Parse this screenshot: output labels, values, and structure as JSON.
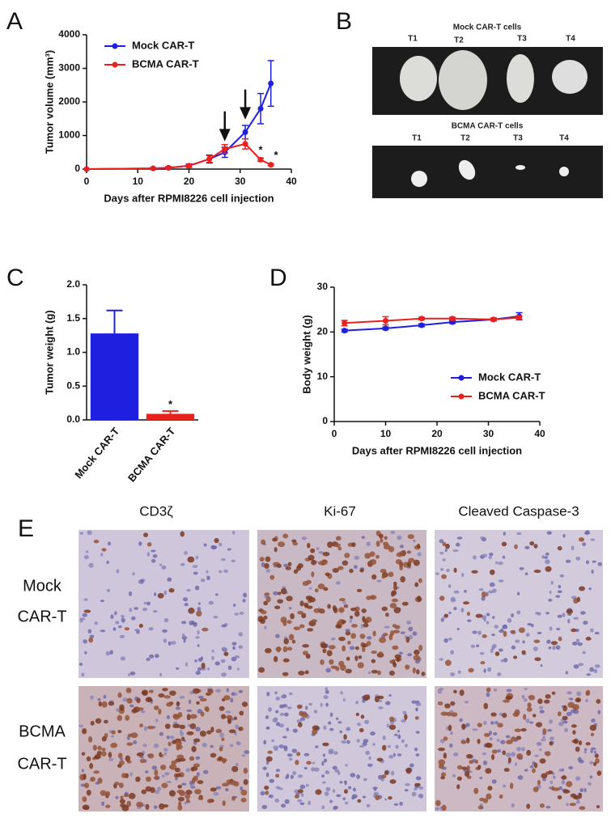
{
  "panel_labels": [
    "A",
    "B",
    "C",
    "D",
    "E"
  ],
  "chart_data": [
    {
      "type": "line",
      "x_label": "Days after RPMI8226 cell injection",
      "y_label": "Tumor volume (mm³)",
      "x": [
        0,
        13,
        16,
        20,
        24,
        27,
        31,
        34,
        36
      ],
      "series": [
        {
          "name": "Mock CAR-T",
          "color": "#1f1fe0",
          "values": [
            0,
            20,
            40,
            100,
            300,
            500,
            1100,
            1800,
            2550
          ],
          "errors": [
            0,
            20,
            30,
            50,
            120,
            150,
            200,
            450,
            680
          ]
        },
        {
          "name": "BCMA CAR-T",
          "color": "#e8211e",
          "values": [
            0,
            20,
            40,
            100,
            300,
            600,
            750,
            280,
            130
          ],
          "errors": [
            0,
            15,
            20,
            40,
            100,
            130,
            150,
            50,
            30
          ]
        }
      ],
      "xlim": [
        0,
        40
      ],
      "xticks": [
        0,
        10,
        20,
        30,
        40
      ],
      "ylim": [
        0,
        4000
      ],
      "yticks": [
        0,
        1000,
        2000,
        3000,
        4000
      ],
      "legend": "upper left",
      "annotations": [
        {
          "text": "*",
          "x": 34,
          "y": 550
        },
        {
          "text": "*",
          "x": 37,
          "y": 400
        }
      ],
      "arrows": [
        {
          "x": 27,
          "y": 900
        },
        {
          "x": 31,
          "y": 1550
        }
      ]
    },
    {
      "type": "bar",
      "y_label": "Tumor weight (g)",
      "categories": [
        "Mock CAR-T",
        "BCMA CAR-T"
      ],
      "values": [
        1.28,
        0.09
      ],
      "errors": [
        0.34,
        0.04
      ],
      "colors": [
        "#1f1fe0",
        "#e8211e"
      ],
      "ylim": [
        0,
        2.0
      ],
      "yticks": [
        {
          "value": 0,
          "label": "0.0"
        },
        {
          "value": 0.5,
          "label": "0.5"
        },
        {
          "value": 1.0,
          "label": "1.0"
        },
        {
          "value": 1.5,
          "label": "1.5"
        },
        {
          "value": 2.0,
          "label": "2.0"
        }
      ],
      "annotations": [
        {
          "text": "*",
          "x": "BCMA CAR-T",
          "y": 0.22
        }
      ]
    },
    {
      "type": "line",
      "x_label": "Days after RPMI8226 cell injection",
      "y_label": "Body weight (g)",
      "x": [
        2,
        10,
        17,
        23,
        31,
        36
      ],
      "series": [
        {
          "name": "Mock CAR-T",
          "color": "#1f1fe0",
          "values": [
            20.3,
            20.8,
            21.5,
            22.2,
            22.8,
            23.5
          ],
          "errors": [
            0.3,
            0.3,
            0.3,
            0.3,
            0.3,
            0.8
          ]
        },
        {
          "name": "BCMA CAR-T",
          "color": "#e8211e",
          "values": [
            22.0,
            22.5,
            23.0,
            23.0,
            22.8,
            23.2
          ],
          "errors": [
            0.6,
            0.9,
            0.3,
            0.3,
            0.3,
            0.4
          ]
        }
      ],
      "xlim": [
        0,
        40
      ],
      "xticks": [
        0,
        10,
        20,
        30,
        40
      ],
      "ylim": [
        0,
        30
      ],
      "yticks": [
        0,
        10,
        20,
        30
      ],
      "legend": "lower right"
    }
  ],
  "photo": {
    "mock_title": "Mock CAR-T cells",
    "mock_labels": [
      "T1",
      "T2",
      "T3",
      "T4"
    ],
    "bcma_title": "BCMA CAR-T cells",
    "bcma_labels": [
      "T1",
      "T2",
      "T3",
      "T4"
    ]
  },
  "histology": {
    "columns": [
      "CD3ζ",
      "Ki-67",
      "Cleaved Caspase-3"
    ],
    "rows": [
      [
        "Mock",
        "CAR-T"
      ],
      [
        "BCMA",
        "CAR-T"
      ]
    ]
  }
}
